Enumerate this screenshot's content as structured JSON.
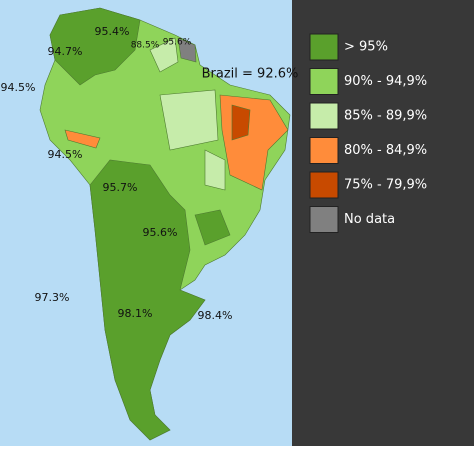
{
  "map": {
    "labels": [
      "95.4%",
      "88.5%",
      "95.6%",
      "94.7%",
      "Brazil = 92.6%",
      "94.5%",
      "94.5%",
      "95.7%",
      "95.6%",
      "97.3%",
      "98.1%",
      "98.4%"
    ]
  },
  "legend": {
    "items": [
      {
        "label": "> 95%",
        "color": "#5aa02c"
      },
      {
        "label": "90% - 94,9%",
        "color": "#8fd45a"
      },
      {
        "label": "85% - 89,9%",
        "color": "#c6ecaa"
      },
      {
        "label": "80% - 84,9%",
        "color": "#ff8c3a"
      },
      {
        "label": "75% - 79,9%",
        "color": "#c84a00"
      },
      {
        "label": "No data",
        "color": "#808080"
      }
    ]
  }
}
